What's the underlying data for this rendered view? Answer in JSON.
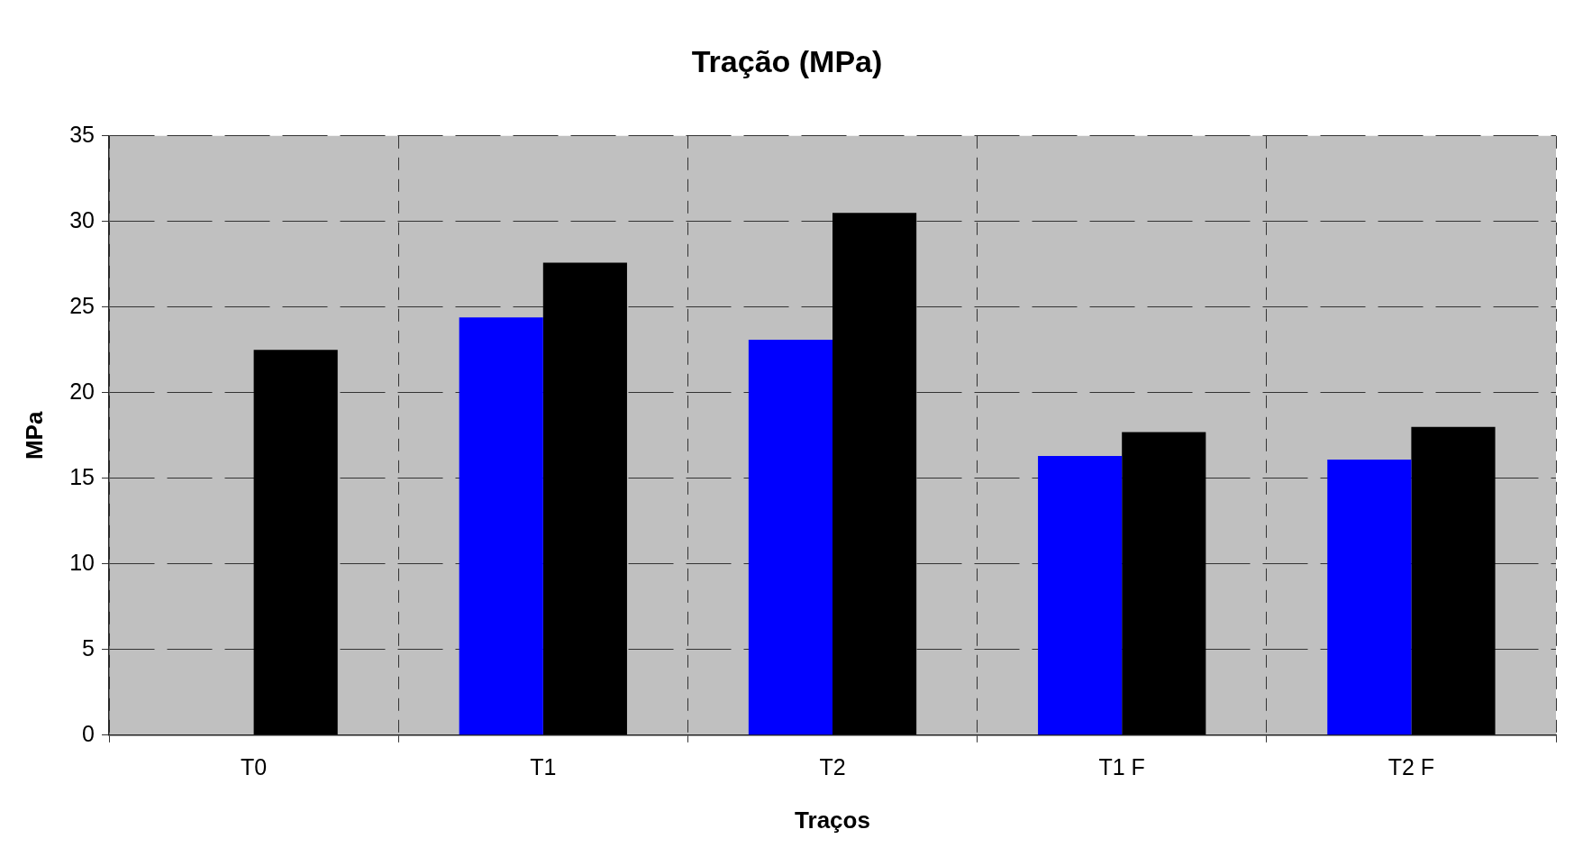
{
  "chart_data": {
    "type": "bar",
    "title": "Tração (MPa)",
    "xlabel": "Traços",
    "ylabel": "MPa",
    "categories": [
      "T0",
      "T1",
      "T2",
      "T1 F",
      "T2 F"
    ],
    "series": [
      {
        "color": "#0000ff",
        "values": [
          null,
          24.4,
          23.1,
          16.3,
          16.1
        ]
      },
      {
        "color": "#000000",
        "values": [
          22.5,
          27.6,
          30.5,
          17.7,
          18.0
        ]
      }
    ],
    "ylim": [
      0,
      35
    ],
    "yticks": [
      0,
      5,
      10,
      15,
      20,
      25,
      30,
      35
    ],
    "grid": true,
    "legend": false
  }
}
